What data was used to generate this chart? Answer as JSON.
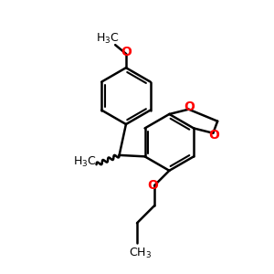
{
  "bg_color": "#ffffff",
  "bond_color": "#000000",
  "oxygen_color": "#ff0000",
  "line_width": 1.8,
  "font_size_label": 9,
  "font_size_small": 7.5,
  "figsize": [
    3.0,
    3.0
  ],
  "dpi": 100,
  "xlim": [
    0,
    10
  ],
  "ylim": [
    0,
    10
  ]
}
